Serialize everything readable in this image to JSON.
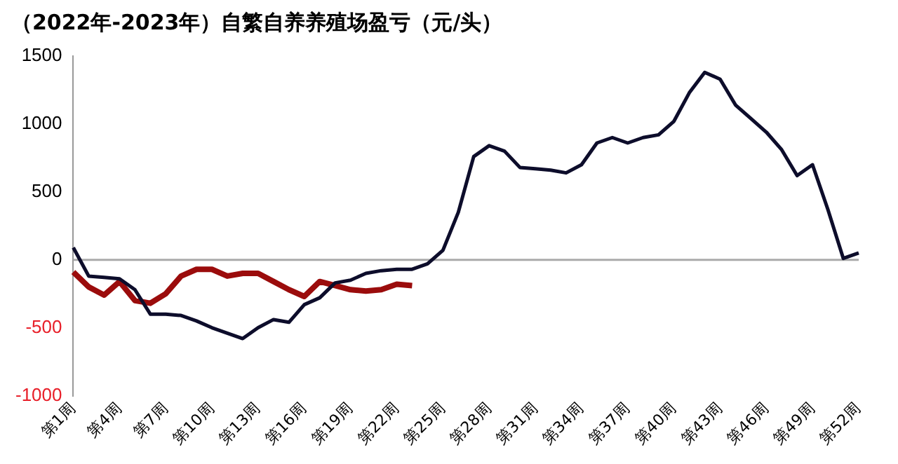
{
  "chart_data": {
    "type": "line",
    "title": "（2022年-2023年）自繁自养养殖场盈亏（元/头）",
    "categories": [
      "第1周",
      null,
      null,
      "第4周",
      null,
      null,
      "第7周",
      null,
      null,
      "第10周",
      null,
      null,
      "第13周",
      null,
      null,
      "第16周",
      null,
      null,
      "第19周",
      null,
      null,
      "第22周",
      null,
      null,
      "第25周",
      null,
      null,
      "第28周",
      null,
      null,
      "第31周",
      null,
      null,
      "第34周",
      null,
      null,
      "第37周",
      null,
      null,
      "第40周",
      null,
      null,
      "第43周",
      null,
      null,
      "第46周",
      null,
      null,
      "第49周",
      null,
      null,
      "第52周"
    ],
    "series": [
      {
        "color": "#0d0d2b",
        "values": [
          90,
          -120,
          -130,
          -140,
          -220,
          -400,
          -400,
          -410,
          -450,
          -500,
          -540,
          -580,
          -500,
          -440,
          -460,
          -330,
          -280,
          -170,
          -150,
          -100,
          -80,
          -70,
          -70,
          -30,
          70,
          350,
          760,
          840,
          800,
          680,
          670,
          660,
          640,
          700,
          860,
          900,
          860,
          900,
          920,
          1020,
          1230,
          1380,
          1330,
          1140,
          1040,
          940,
          810,
          620,
          700,
          370,
          10,
          50
        ]
      },
      {
        "color": "#9b0c0c",
        "values": [
          -90,
          -200,
          -260,
          -160,
          -300,
          -320,
          -250,
          -120,
          -70,
          -70,
          -120,
          -100,
          -100,
          -160,
          -220,
          -270,
          -160,
          -190,
          -220,
          -230,
          -220,
          -180,
          -190,
          null,
          null,
          null,
          null,
          null,
          null,
          null,
          null,
          null,
          null,
          null,
          null,
          null,
          null,
          null,
          null,
          null,
          null,
          null,
          null,
          null,
          null,
          null,
          null,
          null,
          null,
          null,
          null,
          null
        ]
      }
    ],
    "ylim": [
      -1000,
      1500
    ],
    "yticks": [
      -1000,
      -500,
      0,
      500,
      1000,
      1500
    ],
    "ref_lines": [
      {
        "axis": "y",
        "value": 0,
        "color": "#aaaaaa"
      }
    ],
    "legend": false,
    "marker": "none",
    "line_style": "solid"
  }
}
